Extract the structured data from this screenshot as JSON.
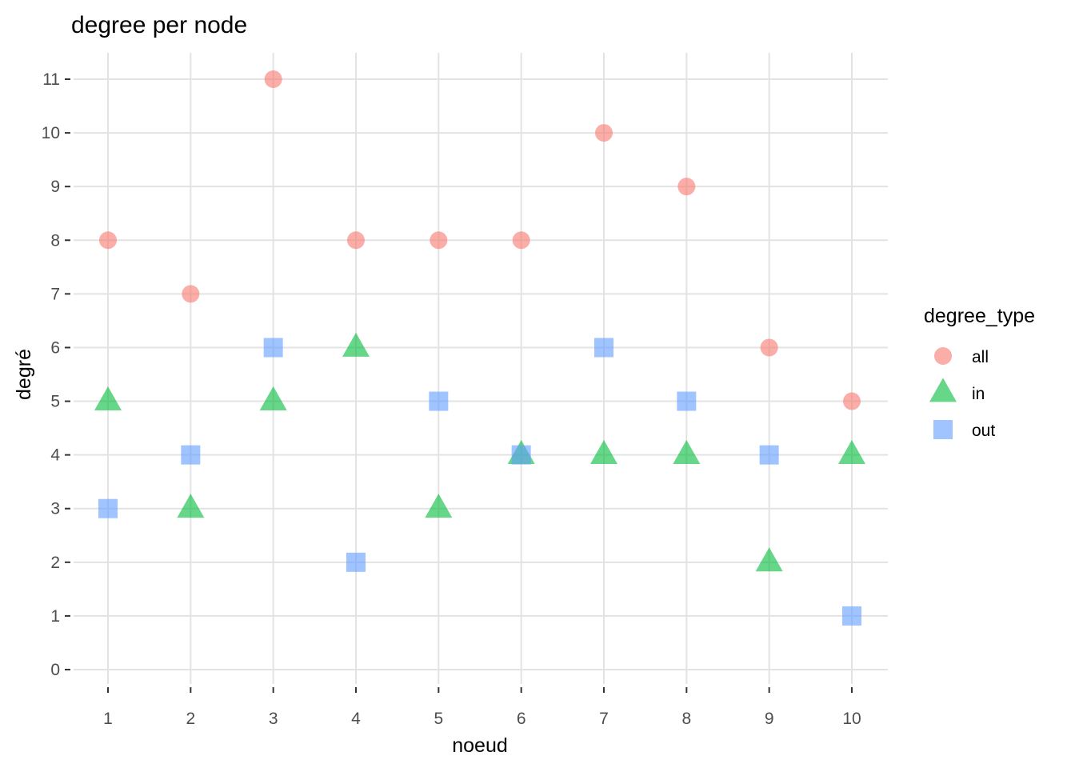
{
  "chart_data": {
    "type": "scatter",
    "title": "degree per node",
    "xlabel": "noeud",
    "ylabel": "degré",
    "x": [
      1,
      2,
      3,
      4,
      5,
      6,
      7,
      8,
      9,
      10
    ],
    "xlim": [
      1,
      10
    ],
    "ylim": [
      0,
      11
    ],
    "x_ticks": [
      1,
      2,
      3,
      4,
      5,
      6,
      7,
      8,
      9,
      10
    ],
    "y_ticks": [
      0,
      1,
      2,
      3,
      4,
      5,
      6,
      7,
      8,
      9,
      10,
      11
    ],
    "grid": true,
    "legend": {
      "title": "degree_type",
      "position": "right"
    },
    "series": [
      {
        "name": "all",
        "shape": "circle",
        "color": "#F8766D",
        "values": [
          8,
          7,
          11,
          8,
          8,
          8,
          10,
          9,
          6,
          5
        ]
      },
      {
        "name": "in",
        "shape": "triangle",
        "color": "#00BA38",
        "values": [
          5,
          3,
          5,
          6,
          3,
          4,
          4,
          4,
          2,
          4
        ]
      },
      {
        "name": "out",
        "shape": "square",
        "color": "#619CFF",
        "values": [
          3,
          4,
          6,
          2,
          5,
          4,
          6,
          5,
          4,
          1
        ]
      }
    ]
  }
}
